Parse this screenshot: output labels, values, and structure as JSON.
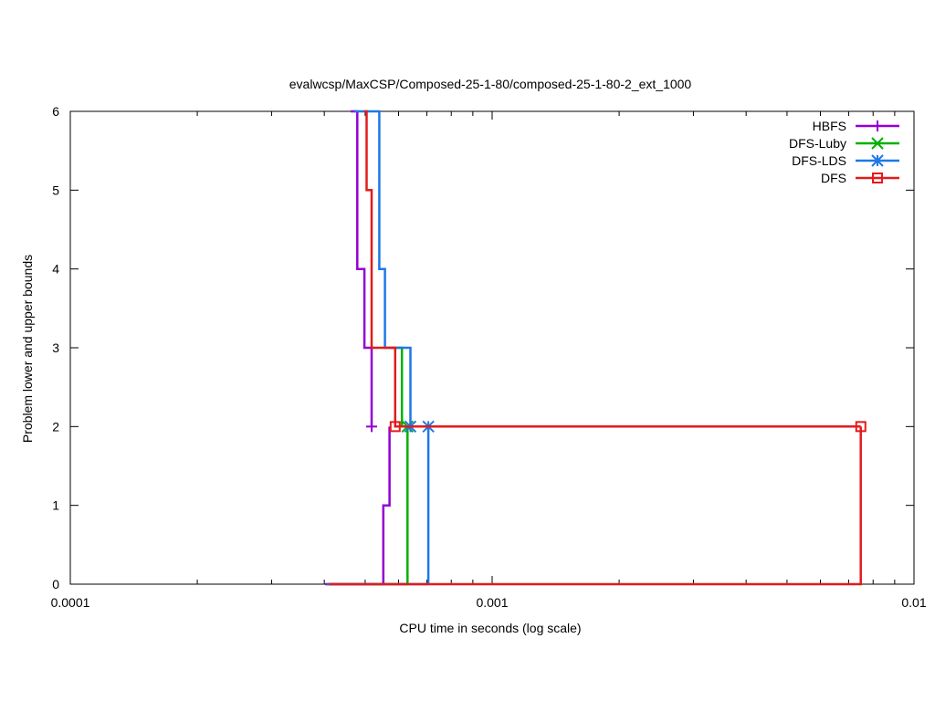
{
  "chart_data": {
    "type": "line",
    "title": "evalwcsp/MaxCSP/Composed-25-1-80/composed-25-1-80-2_ext_1000",
    "xlabel": "CPU time in seconds (log scale)",
    "ylabel": "Problem lower and upper bounds",
    "xscale": "log",
    "xlim": [
      0.0001,
      0.01
    ],
    "ylim": [
      0,
      6
    ],
    "x_ticks": [
      {
        "value": 0.0001,
        "label": "0.0001"
      },
      {
        "value": 0.001,
        "label": "0.001"
      },
      {
        "value": 0.01,
        "label": "0.01"
      }
    ],
    "y_ticks": [
      {
        "value": 0,
        "label": "0"
      },
      {
        "value": 1,
        "label": "1"
      },
      {
        "value": 2,
        "label": "2"
      },
      {
        "value": 3,
        "label": "3"
      },
      {
        "value": 4,
        "label": "4"
      },
      {
        "value": 5,
        "label": "5"
      },
      {
        "value": 6,
        "label": "6"
      }
    ],
    "grid": false,
    "legend_position": "top-right",
    "series": [
      {
        "name": "HBFS",
        "color": "#9400d3",
        "marker": "plus",
        "upper": [
          [
            0.000462,
            6
          ],
          [
            0.000479,
            6
          ],
          [
            0.000479,
            4
          ],
          [
            0.000498,
            4
          ],
          [
            0.000498,
            3
          ],
          [
            0.000518,
            3
          ],
          [
            0.000518,
            2
          ]
        ],
        "lower": [
          [
            0.000402,
            0
          ],
          [
            0.000552,
            0
          ],
          [
            0.000552,
            1
          ],
          [
            0.000571,
            1
          ],
          [
            0.000571,
            2
          ]
        ],
        "markers": [
          [
            0.000518,
            2
          ]
        ]
      },
      {
        "name": "DFS-Luby",
        "color": "#00b000",
        "marker": "x",
        "upper": [
          [
            0.000566,
            3
          ],
          [
            0.000611,
            3
          ],
          [
            0.000611,
            2
          ],
          [
            0.00063,
            2
          ]
        ],
        "lower": [
          [
            0.000406,
            0
          ],
          [
            0.00063,
            0
          ],
          [
            0.00063,
            2
          ]
        ],
        "markers": [
          [
            0.00063,
            2
          ]
        ]
      },
      {
        "name": "DFS-LDS",
        "color": "#1e78e6",
        "marker": "star",
        "upper": [
          [
            0.000471,
            6
          ],
          [
            0.00054,
            6
          ],
          [
            0.00054,
            4
          ],
          [
            0.000557,
            4
          ],
          [
            0.000557,
            3
          ],
          [
            0.00064,
            3
          ],
          [
            0.00064,
            2
          ],
          [
            0.000706,
            2
          ]
        ],
        "lower": [
          [
            0.000406,
            0
          ],
          [
            0.000706,
            0
          ],
          [
            0.000706,
            2
          ]
        ],
        "markers": [
          [
            0.00064,
            2
          ],
          [
            0.000706,
            2
          ]
        ]
      },
      {
        "name": "DFS",
        "color": "#e41a1c",
        "marker": "square",
        "upper": [
          [
            0.000498,
            6
          ],
          [
            0.000504,
            6
          ],
          [
            0.000504,
            5
          ],
          [
            0.000518,
            5
          ],
          [
            0.000518,
            3
          ],
          [
            0.000589,
            3
          ],
          [
            0.000589,
            2
          ],
          [
            0.00748,
            2
          ]
        ],
        "lower": [
          [
            0.00041,
            0
          ],
          [
            0.00748,
            0
          ],
          [
            0.00748,
            2
          ]
        ],
        "markers": [
          [
            0.000589,
            2
          ],
          [
            0.00748,
            2
          ]
        ]
      }
    ]
  }
}
